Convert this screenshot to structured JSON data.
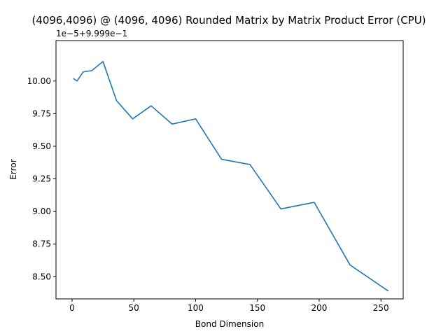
{
  "chart_data": {
    "type": "line",
    "title": "(4096,4096) @ (4096, 4096) Rounded Matrix by Matrix Product Error (CPU)",
    "xlabel": "Bond Dimension",
    "ylabel": "Error",
    "offset_text": "1e−5+9.999e−1",
    "xlim": [
      -13,
      268
    ],
    "ylim": [
      8.33,
      10.31
    ],
    "xticks": [
      0,
      50,
      100,
      150,
      200,
      250
    ],
    "xtick_labels": [
      "0",
      "50",
      "100",
      "150",
      "200",
      "250"
    ],
    "yticks": [
      8.5,
      8.75,
      9.0,
      9.25,
      9.5,
      9.75,
      10.0
    ],
    "ytick_labels": [
      "8.50",
      "8.75",
      "9.00",
      "9.25",
      "9.50",
      "9.75",
      "10.00"
    ],
    "grid": false,
    "line_color": "#1f77b4",
    "series": [
      {
        "x": [
          1,
          4,
          9,
          16,
          25,
          36,
          49,
          64,
          81,
          100,
          121,
          144,
          169,
          196,
          225,
          256
        ],
        "y": [
          10.02,
          10.0,
          10.07,
          10.08,
          10.15,
          9.85,
          9.71,
          9.81,
          9.67,
          9.71,
          9.4,
          9.36,
          9.02,
          9.07,
          8.59,
          8.39
        ]
      }
    ]
  }
}
